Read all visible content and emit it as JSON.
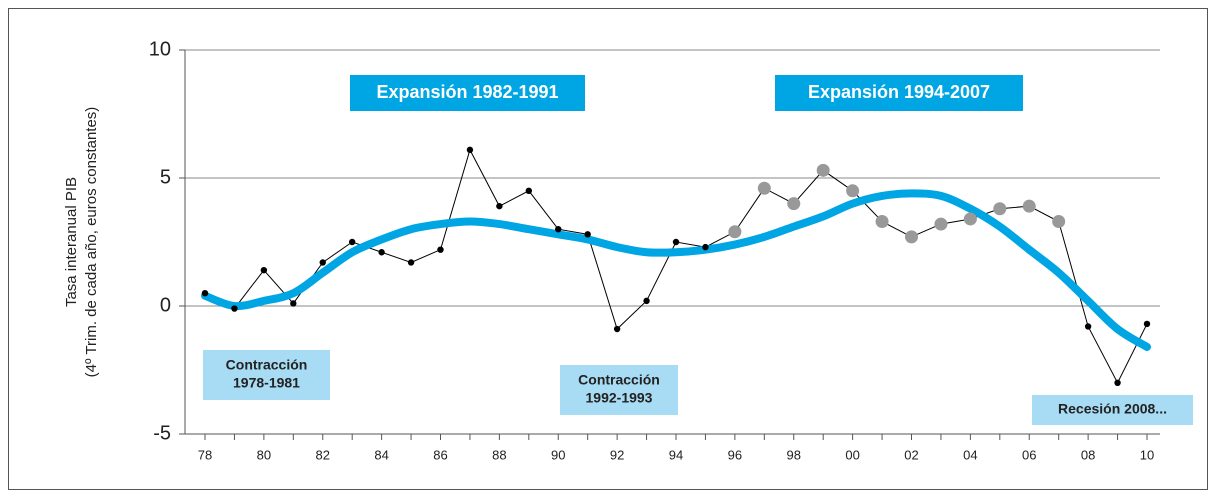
{
  "chart_data": {
    "type": "line",
    "ylabel": [
      "Tasa interanual PIB",
      "(4º Trim. de cada año, euros constantes)"
    ],
    "categories": [
      "78",
      null,
      "80",
      null,
      "82",
      null,
      "84",
      null,
      "86",
      null,
      "88",
      null,
      "90",
      null,
      "92",
      null,
      "94",
      null,
      "96",
      null,
      "98",
      null,
      "00",
      null,
      "02",
      null,
      "04",
      null,
      "06",
      null,
      "08",
      null,
      "10"
    ],
    "series": [
      {
        "color": "#000000",
        "values": [
          0.5,
          -0.1,
          1.4,
          0.1,
          1.7,
          2.5,
          2.1,
          1.7,
          2.2,
          6.1,
          3.9,
          4.5,
          3.0,
          2.8,
          -0.9,
          0.2,
          2.5,
          2.3,
          2.9,
          4.6,
          4.0,
          5.3,
          4.5,
          3.3,
          2.7,
          3.2,
          3.4,
          3.8,
          3.9,
          3.3,
          -0.8,
          -3.0,
          -0.7
        ],
        "point_colors": [
          "#000000",
          "#000000",
          "#000000",
          "#000000",
          "#000000",
          "#000000",
          "#000000",
          "#000000",
          "#000000",
          "#000000",
          "#000000",
          "#000000",
          "#000000",
          "#000000",
          "#000000",
          "#000000",
          "#000000",
          "#000000",
          "#999999",
          "#999999",
          "#999999",
          "#999999",
          "#999999",
          "#999999",
          "#999999",
          "#999999",
          "#999999",
          "#999999",
          "#999999",
          "#999999",
          "#000000",
          "#000000",
          "#000000"
        ]
      },
      {
        "color": "#00a5e3",
        "smooth": true,
        "values": [
          0.4,
          0.0,
          0.2,
          0.5,
          1.3,
          2.1,
          2.6,
          3.0,
          3.2,
          3.3,
          3.2,
          3.0,
          2.8,
          2.6,
          2.3,
          2.1,
          2.1,
          2.2,
          2.4,
          2.7,
          3.1,
          3.5,
          4.0,
          4.3,
          4.4,
          4.3,
          3.8,
          3.1,
          2.2,
          1.3,
          0.2,
          -0.9,
          -1.6
        ]
      }
    ],
    "ylim": [
      -5,
      10
    ],
    "yticks": [
      -5,
      0,
      5,
      10
    ],
    "grid": true,
    "annotations": [
      {
        "lines": [
          "Expansión 1982-1991"
        ],
        "color": "#00a5e3",
        "text_color": "#ffffff"
      },
      {
        "lines": [
          "Expansión 1994-2007"
        ],
        "color": "#00a5e3",
        "text_color": "#ffffff"
      },
      {
        "lines": [
          "Contracción",
          "1978-1981"
        ],
        "color": "#a8dcf4",
        "text_color": "#222222"
      },
      {
        "lines": [
          "Contracción",
          "1992-1993"
        ],
        "color": "#a8dcf4",
        "text_color": "#222222"
      },
      {
        "lines": [
          "Recesión 2008..."
        ],
        "color": "#a8dcf4",
        "text_color": "#222222"
      }
    ]
  }
}
